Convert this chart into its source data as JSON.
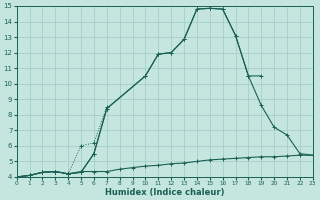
{
  "xlabel": "Humidex (Indice chaleur)",
  "background_color": "#c5e5df",
  "grid_color": "#9dccc5",
  "line_color": "#1a6055",
  "xlim": [
    0,
    23
  ],
  "ylim": [
    4,
    15
  ],
  "xticks": [
    0,
    1,
    2,
    3,
    4,
    5,
    6,
    7,
    8,
    9,
    10,
    11,
    12,
    13,
    14,
    15,
    16,
    17,
    18,
    19,
    20,
    21,
    22,
    23
  ],
  "yticks": [
    4,
    5,
    6,
    7,
    8,
    9,
    10,
    11,
    12,
    13,
    14,
    15
  ],
  "curve_dotted": {
    "x": [
      0,
      1,
      2,
      3,
      4,
      5,
      6,
      7
    ],
    "y": [
      4.0,
      4.1,
      4.3,
      4.35,
      4.2,
      6.0,
      6.2,
      8.5
    ]
  },
  "curve_big": {
    "x": [
      0,
      1,
      2,
      3,
      4,
      5,
      6,
      7,
      10,
      11,
      12,
      13,
      14,
      15,
      16,
      17,
      18,
      19
    ],
    "y": [
      4.0,
      4.1,
      4.3,
      4.35,
      4.2,
      4.3,
      5.5,
      8.4,
      10.5,
      11.9,
      12.0,
      12.85,
      14.8,
      14.85,
      14.8,
      13.1,
      10.5,
      10.5
    ]
  },
  "curve_mid": {
    "x": [
      0,
      1,
      2,
      3,
      4,
      5,
      6,
      7,
      10,
      11,
      12,
      13,
      14,
      15,
      16,
      17,
      18,
      19,
      20,
      21,
      22,
      23
    ],
    "y": [
      4.0,
      4.1,
      4.3,
      4.35,
      4.2,
      4.3,
      5.5,
      8.4,
      10.5,
      11.9,
      12.0,
      12.85,
      14.8,
      14.85,
      14.8,
      13.1,
      10.5,
      8.6,
      7.2,
      6.7,
      5.5,
      5.4
    ]
  },
  "curve_flat": {
    "x": [
      0,
      1,
      2,
      3,
      4,
      5,
      6,
      7,
      8,
      9,
      10,
      11,
      12,
      13,
      14,
      15,
      16,
      17,
      18,
      19,
      20,
      21,
      22,
      23
    ],
    "y": [
      4.0,
      4.1,
      4.3,
      4.35,
      4.2,
      4.35,
      4.35,
      4.35,
      4.5,
      4.6,
      4.7,
      4.75,
      4.85,
      4.9,
      5.0,
      5.1,
      5.15,
      5.2,
      5.25,
      5.3,
      5.3,
      5.35,
      5.4,
      5.4
    ]
  }
}
